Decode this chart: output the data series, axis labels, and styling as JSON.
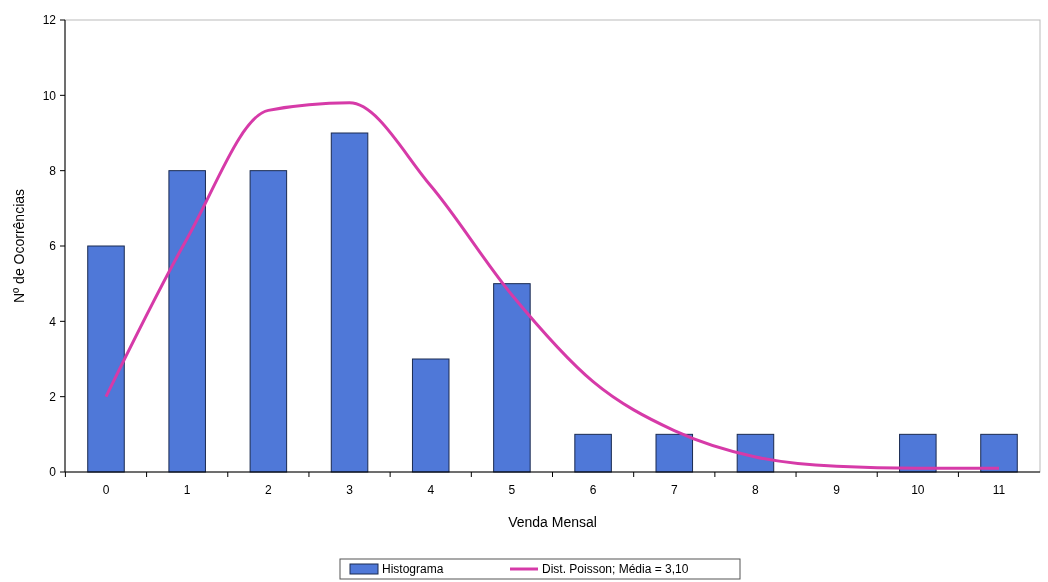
{
  "chart_data": {
    "type": "bar",
    "xlabel": "Venda Mensal",
    "ylabel": "Nº de Ocorrências",
    "categories": [
      "0",
      "1",
      "2",
      "3",
      "4",
      "5",
      "6",
      "7",
      "8",
      "9",
      "10",
      "11"
    ],
    "series": [
      {
        "name": "Histograma",
        "color": "#4f78d8",
        "values": [
          6,
          8,
          8,
          9,
          3,
          5,
          1,
          1,
          1,
          0,
          1,
          1
        ]
      },
      {
        "name": "Dist. Poisson; Média = 3,10",
        "type": "line",
        "color": "#d63aa8",
        "values": [
          2,
          6.2,
          9.6,
          9.8,
          7.6,
          4.7,
          2.4,
          1.1,
          0.4,
          0.15,
          0.1,
          0.1
        ]
      }
    ],
    "ylim": [
      0,
      12
    ],
    "yticks": [
      0,
      2,
      4,
      6,
      8,
      10,
      12
    ],
    "grid": false,
    "legend": "bottom",
    "marker": "none",
    "line_style": "solid"
  }
}
